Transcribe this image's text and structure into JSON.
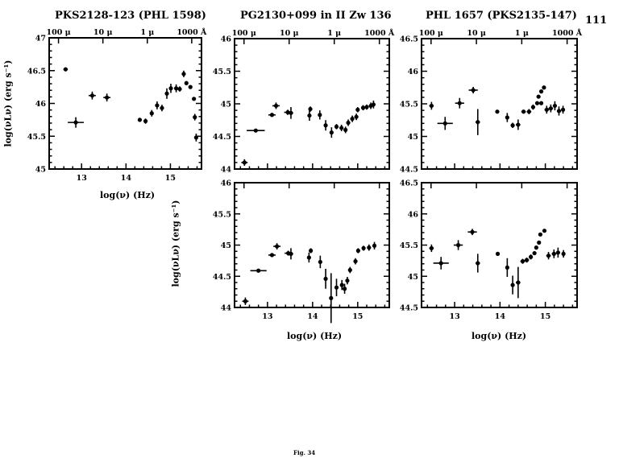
{
  "page_number": "111",
  "caption": "Fig. 34",
  "titles": [
    "PKS2128-123 (PHL 1598)",
    "PG2130+099 in II Zw 136",
    "PHL 1657 (PKS2135-147)"
  ],
  "xlabel": "log(ν) (Hz)",
  "ylabel": "log(νLν) (erg s⁻¹)",
  "top_axis_labels": [
    {
      "label": "100 μ",
      "x": 12.48
    },
    {
      "label": "10 μ",
      "x": 13.48
    },
    {
      "label": "1 μ",
      "x": 14.48
    },
    {
      "label": "1000 Å",
      "x": 15.48
    }
  ],
  "chart_data": [
    {
      "id": "pks2128-top",
      "type": "scatter",
      "title": "PKS2128-123 (PHL 1598)",
      "xlabel": "log(ν) (Hz)",
      "ylabel": "log(νLν) (erg s⁻¹)",
      "xlim": [
        12.27,
        15.7
      ],
      "ylim": [
        45,
        47
      ],
      "xticks": [
        13,
        14,
        15
      ],
      "yticks": [
        45,
        45.5,
        46,
        46.5,
        47
      ],
      "points": [
        [
          12.64,
          46.52,
          0.05,
          0.02
        ],
        [
          12.87,
          45.71,
          0.18,
          0.08
        ],
        [
          13.24,
          46.12,
          0.08,
          0.06
        ],
        [
          13.57,
          46.09,
          0.08,
          0.06
        ],
        [
          14.31,
          45.75,
          0.04,
          0.03
        ],
        [
          14.44,
          45.73,
          0.04,
          0.04
        ],
        [
          14.58,
          45.85,
          0.03,
          0.05
        ],
        [
          14.7,
          45.97,
          0.03,
          0.06
        ],
        [
          14.81,
          45.93,
          0.04,
          0.05
        ],
        [
          14.92,
          46.15,
          0.03,
          0.08
        ],
        [
          15.01,
          46.23,
          0.03,
          0.07
        ],
        [
          15.13,
          46.23,
          0.05,
          0.06
        ],
        [
          15.21,
          46.22,
          0.04,
          0.04
        ],
        [
          15.3,
          46.45,
          0.02,
          0.05
        ],
        [
          15.36,
          46.31,
          0.03,
          0.03
        ],
        [
          15.45,
          46.25,
          0.03,
          0.02
        ],
        [
          15.53,
          46.07,
          0.02,
          0.02
        ],
        [
          15.55,
          45.79,
          0.02,
          0.05
        ],
        [
          15.58,
          45.48,
          0.03,
          0.06
        ]
      ]
    },
    {
      "id": "pg2130-top",
      "type": "scatter",
      "title": "PG2130+099 in II Zw 136",
      "xlim": [
        12.27,
        15.7
      ],
      "ylim": [
        44,
        46
      ],
      "xticks": [
        13,
        14,
        15
      ],
      "yticks": [
        44,
        44.5,
        45,
        45.5,
        46
      ],
      "points": [
        [
          12.49,
          44.1,
          0.07,
          0.05
        ],
        [
          12.74,
          44.59,
          0.2,
          0.01
        ],
        [
          13.1,
          44.83,
          0.08,
          0.03
        ],
        [
          13.19,
          44.97,
          0.08,
          0.05
        ],
        [
          13.45,
          44.87,
          0.08,
          0.04
        ],
        [
          13.52,
          44.86,
          0.05,
          0.09
        ],
        [
          13.93,
          44.82,
          0.02,
          0.08
        ],
        [
          13.95,
          44.92,
          0.03,
          0.04
        ],
        [
          14.16,
          44.83,
          0.02,
          0.07
        ],
        [
          14.29,
          44.67,
          0.02,
          0.08
        ],
        [
          14.42,
          44.56,
          0.02,
          0.08
        ],
        [
          14.53,
          44.65,
          0.03,
          0.04
        ],
        [
          14.64,
          44.63,
          0.04,
          0.05
        ],
        [
          14.73,
          44.6,
          0.04,
          0.05
        ],
        [
          14.79,
          44.71,
          0.04,
          0.05
        ],
        [
          14.88,
          44.77,
          0.04,
          0.05
        ],
        [
          14.97,
          44.8,
          0.04,
          0.05
        ],
        [
          15.0,
          44.91,
          0.04,
          0.04
        ],
        [
          15.12,
          44.94,
          0.04,
          0.04
        ],
        [
          15.2,
          44.95,
          0.04,
          0.04
        ],
        [
          15.29,
          44.97,
          0.04,
          0.05
        ],
        [
          15.35,
          44.99,
          0.03,
          0.06
        ]
      ]
    },
    {
      "id": "phl1657-top",
      "type": "scatter",
      "title": "PHL 1657 (PKS2135-147)",
      "xlim": [
        12.27,
        15.7
      ],
      "ylim": [
        44.5,
        46.5
      ],
      "xticks": [
        13,
        14,
        15
      ],
      "yticks": [
        44.5,
        45,
        45.5,
        46,
        46.5
      ],
      "points": [
        [
          12.49,
          45.47,
          0.05,
          0.06
        ],
        [
          12.79,
          45.2,
          0.17,
          0.1
        ],
        [
          13.11,
          45.51,
          0.1,
          0.08
        ],
        [
          13.41,
          45.71,
          0.1,
          0.05
        ],
        [
          13.51,
          45.22,
          0.05,
          0.2
        ],
        [
          13.94,
          45.38,
          0.04,
          0.02
        ],
        [
          14.16,
          45.29,
          0.03,
          0.07
        ],
        [
          14.28,
          45.17,
          0.04,
          0.04
        ],
        [
          14.4,
          45.18,
          0.05,
          0.08
        ],
        [
          14.52,
          45.38,
          0.05,
          0.03
        ],
        [
          14.64,
          45.38,
          0.05,
          0.04
        ],
        [
          14.73,
          45.45,
          0.04,
          0.04
        ],
        [
          14.82,
          45.51,
          0.03,
          0.03
        ],
        [
          14.85,
          45.61,
          0.02,
          0.02
        ],
        [
          14.91,
          45.69,
          0.02,
          0.02
        ],
        [
          14.97,
          45.75,
          0.02,
          0.02
        ],
        [
          14.91,
          45.51,
          0.02,
          0.03
        ],
        [
          15.03,
          45.41,
          0.05,
          0.06
        ],
        [
          15.12,
          45.43,
          0.05,
          0.06
        ],
        [
          15.21,
          45.47,
          0.04,
          0.07
        ],
        [
          15.3,
          45.39,
          0.04,
          0.07
        ],
        [
          15.39,
          45.41,
          0.04,
          0.06
        ]
      ]
    },
    {
      "id": "pg2130-bottom",
      "type": "scatter",
      "xlabel": "log(ν) (Hz)",
      "ylabel": "log(νLν) (erg s⁻¹)",
      "xlim": [
        12.27,
        15.7
      ],
      "ylim": [
        44,
        46
      ],
      "xticks": [
        13,
        14,
        15
      ],
      "yticks": [
        44,
        44.5,
        45,
        45.5,
        46
      ],
      "points": [
        [
          12.51,
          44.1,
          0.07,
          0.06
        ],
        [
          12.8,
          44.59,
          0.18,
          0.01
        ],
        [
          13.1,
          44.84,
          0.08,
          0.03
        ],
        [
          13.21,
          44.98,
          0.08,
          0.05
        ],
        [
          13.46,
          44.87,
          0.08,
          0.04
        ],
        [
          13.52,
          44.86,
          0.05,
          0.09
        ],
        [
          13.92,
          44.8,
          0.02,
          0.08
        ],
        [
          13.96,
          44.91,
          0.03,
          0.04
        ],
        [
          14.17,
          44.73,
          0.02,
          0.1
        ],
        [
          14.29,
          44.46,
          0.02,
          0.16
        ],
        [
          14.41,
          44.15,
          0.02,
          0.4
        ],
        [
          14.53,
          44.32,
          0.03,
          0.14
        ],
        [
          14.65,
          44.36,
          0.04,
          0.08
        ],
        [
          14.71,
          44.3,
          0.04,
          0.08
        ],
        [
          14.77,
          44.43,
          0.04,
          0.06
        ],
        [
          14.83,
          44.6,
          0.04,
          0.05
        ],
        [
          14.95,
          44.74,
          0.04,
          0.05
        ],
        [
          15.01,
          44.91,
          0.04,
          0.04
        ],
        [
          15.13,
          44.95,
          0.04,
          0.04
        ],
        [
          15.25,
          44.96,
          0.04,
          0.05
        ],
        [
          15.37,
          44.99,
          0.03,
          0.06
        ]
      ]
    },
    {
      "id": "phl1657-bottom",
      "type": "scatter",
      "xlabel": "log(ν) (Hz)",
      "xlim": [
        12.27,
        15.7
      ],
      "ylim": [
        44.5,
        46.5
      ],
      "xticks": [
        13,
        14,
        15
      ],
      "yticks": [
        44.5,
        45,
        45.5,
        46,
        46.5
      ],
      "points": [
        [
          12.49,
          45.45,
          0.05,
          0.06
        ],
        [
          12.7,
          45.21,
          0.17,
          0.1
        ],
        [
          13.08,
          45.5,
          0.1,
          0.08
        ],
        [
          13.39,
          45.71,
          0.1,
          0.05
        ],
        [
          13.51,
          45.21,
          0.05,
          0.15
        ],
        [
          13.95,
          45.36,
          0.04,
          0.02
        ],
        [
          14.16,
          45.14,
          0.03,
          0.15
        ],
        [
          14.28,
          44.86,
          0.03,
          0.15
        ],
        [
          14.4,
          44.9,
          0.05,
          0.25
        ],
        [
          14.5,
          45.24,
          0.05,
          0.04
        ],
        [
          14.59,
          45.26,
          0.05,
          0.04
        ],
        [
          14.68,
          45.31,
          0.04,
          0.04
        ],
        [
          14.76,
          45.37,
          0.03,
          0.03
        ],
        [
          14.8,
          45.46,
          0.02,
          0.03
        ],
        [
          14.86,
          45.54,
          0.02,
          0.02
        ],
        [
          14.89,
          45.67,
          0.02,
          0.02
        ],
        [
          14.98,
          45.73,
          0.02,
          0.02
        ],
        [
          15.07,
          45.33,
          0.05,
          0.06
        ],
        [
          15.19,
          45.36,
          0.05,
          0.07
        ],
        [
          15.28,
          45.38,
          0.04,
          0.08
        ],
        [
          15.4,
          45.36,
          0.04,
          0.06
        ]
      ]
    }
  ]
}
